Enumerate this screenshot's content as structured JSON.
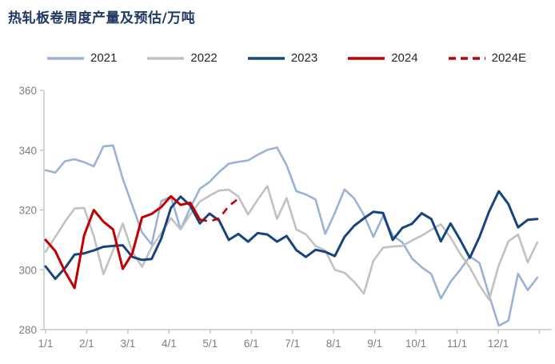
{
  "page": {
    "background": "#ffffff"
  },
  "title": {
    "text": "热轧板卷周度产量及预估/万吨",
    "color": "#1F3864"
  },
  "axis_style": {
    "line_color": "#BFBFBF",
    "label_color": "#7F7F7F"
  },
  "chart_data": {
    "type": "line",
    "title": "热轧板卷周度产量及预估/万吨",
    "xlabel": "",
    "ylabel": "万吨",
    "legend_position": "top",
    "grid": false,
    "y_axis": {
      "min": 280,
      "max": 360,
      "ticks": [
        360,
        340,
        320,
        300,
        280
      ]
    },
    "x_axis": {
      "labels": [
        "1/1",
        "2/1",
        "3/1",
        "4/1",
        "5/1",
        "6/1",
        "7/1",
        "8/1",
        "9/1",
        "10/1",
        "11/1",
        "12/1"
      ],
      "unit": "week",
      "points_per_year": 52
    },
    "series": [
      {
        "name": "2021",
        "color": "#9AB2D6",
        "dashed": false,
        "start_week": 0,
        "values": [
          333.3,
          332.5,
          336.3,
          337.0,
          336.0,
          334.6,
          341.3,
          341.6,
          330.5,
          321.5,
          312.5,
          308.5,
          323.0,
          324.5,
          313.5,
          320.7,
          327.1,
          329.4,
          332.7,
          335.5,
          336.1,
          336.6,
          338.5,
          340.1,
          340.9,
          335.0,
          326.3,
          325.2,
          323.5,
          312.0,
          319.0,
          326.9,
          323.9,
          318.4,
          311.0,
          318.0,
          311.5,
          309.2,
          303.8,
          300.9,
          298.6,
          290.4,
          296.0,
          300.0,
          304.5,
          302.3,
          291.5,
          281.3,
          283.0,
          298.7,
          293.2,
          297.4
        ]
      },
      {
        "name": "2022",
        "color": "#C1C1C1",
        "dashed": false,
        "start_week": 0,
        "values": [
          306.0,
          311.0,
          316.0,
          320.5,
          320.7,
          311.3,
          298.5,
          306.5,
          315.5,
          306.0,
          301.0,
          307.5,
          312.3,
          317.3,
          313.5,
          318.5,
          322.8,
          324.8,
          326.5,
          326.8,
          324.5,
          318.5,
          323.5,
          328.0,
          317.0,
          324.0,
          313.5,
          311.9,
          308.0,
          306.5,
          300.0,
          299.0,
          296.0,
          292.0,
          303.0,
          307.4,
          307.8,
          308.0,
          309.8,
          311.4,
          313.4,
          315.2,
          310.8,
          305.3,
          300.8,
          294.8,
          290.0,
          301.5,
          309.5,
          311.8,
          302.5,
          309.2
        ]
      },
      {
        "name": "2023",
        "color": "#17437F",
        "dashed": false,
        "start_week": 0,
        "values": [
          301.1,
          297.0,
          300.5,
          305.1,
          305.5,
          306.5,
          307.7,
          308.0,
          308.2,
          304.3,
          303.3,
          303.6,
          310.5,
          320.7,
          324.5,
          321.5,
          315.5,
          318.8,
          316.5,
          310.0,
          312.0,
          309.4,
          312.3,
          311.8,
          309.4,
          311.3,
          306.6,
          304.3,
          306.7,
          306.0,
          304.6,
          311.0,
          314.7,
          317.2,
          319.4,
          319.0,
          310.0,
          314.0,
          315.4,
          318.9,
          317.0,
          309.5,
          315.5,
          310.0,
          304.0,
          311.0,
          319.5,
          326.3,
          322.0,
          314.2,
          316.7,
          317.0
        ]
      },
      {
        "name": "2024",
        "color": "#C00000",
        "dashed": false,
        "start_week": 0,
        "values": [
          310.0,
          306.3,
          299.5,
          293.9,
          311.5,
          320.0,
          316.1,
          313.5,
          300.3,
          305.5,
          317.5,
          318.7,
          321.0,
          324.6,
          321.7,
          322.4,
          316.8
        ]
      },
      {
        "name": "2024E",
        "color": "#C00000",
        "dashed": true,
        "start_week": 16,
        "values": [
          316.8,
          316.2,
          317.2,
          321.3,
          323.8
        ]
      }
    ]
  }
}
